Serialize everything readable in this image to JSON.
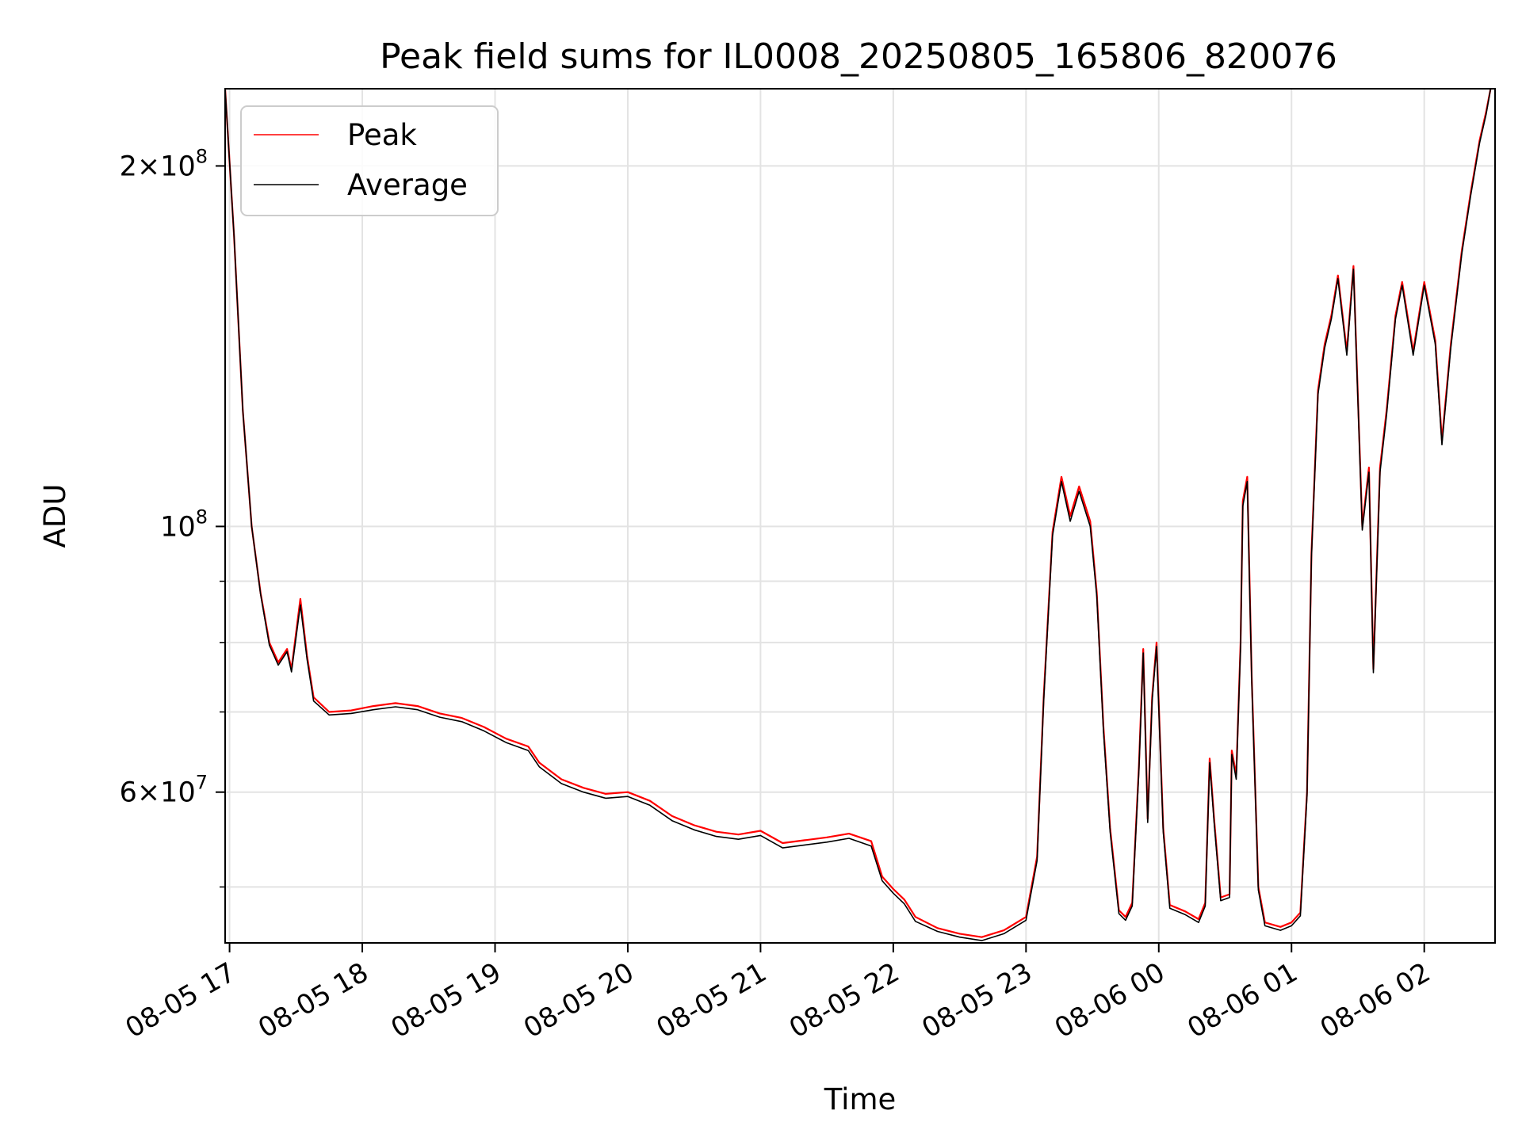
{
  "chart_data": {
    "type": "line",
    "title": "Peak field sums for IL0008_20250805_165806_820076",
    "xlabel": "Time",
    "ylabel": "ADU",
    "scale_y": "log",
    "grid": true,
    "legend_position": "top-left",
    "xlim": [
      "2025-08-05 16:58",
      "2025-08-06 02:32"
    ],
    "ylim": [
      44900000,
      232000000
    ],
    "x_ticks": [
      {
        "t": "2025-08-05 17:00",
        "label": "08-05 17"
      },
      {
        "t": "2025-08-05 18:00",
        "label": "08-05 18"
      },
      {
        "t": "2025-08-05 19:00",
        "label": "08-05 19"
      },
      {
        "t": "2025-08-05 20:00",
        "label": "08-05 20"
      },
      {
        "t": "2025-08-05 21:00",
        "label": "08-05 21"
      },
      {
        "t": "2025-08-05 22:00",
        "label": "08-05 22"
      },
      {
        "t": "2025-08-05 23:00",
        "label": "08-05 23"
      },
      {
        "t": "2025-08-06 00:00",
        "label": "08-06 00"
      },
      {
        "t": "2025-08-06 01:00",
        "label": "08-06 01"
      },
      {
        "t": "2025-08-06 02:00",
        "label": "08-06 02"
      }
    ],
    "y_major_ticks": [
      {
        "value": 60000000,
        "mant": "6",
        "exp": "7"
      },
      {
        "value": 100000000,
        "mant": "",
        "exp": "8"
      },
      {
        "value": 200000000,
        "mant": "2",
        "exp": "8"
      }
    ],
    "y_minor_ticks": [
      50000000,
      70000000,
      80000000,
      90000000
    ],
    "series": [
      {
        "name": "Peak",
        "color": "#ff0000",
        "points": [
          [
            "2025-08-05 16:58",
            232000000
          ],
          [
            "2025-08-05 17:02",
            175000000
          ],
          [
            "2025-08-05 17:06",
            125000000
          ],
          [
            "2025-08-05 17:10",
            100000000
          ],
          [
            "2025-08-05 17:14",
            88000000
          ],
          [
            "2025-08-05 17:18",
            80000000
          ],
          [
            "2025-08-05 17:22",
            77000000
          ],
          [
            "2025-08-05 17:26",
            79000000
          ],
          [
            "2025-08-05 17:28",
            76000000
          ],
          [
            "2025-08-05 17:32",
            87000000
          ],
          [
            "2025-08-05 17:35",
            78000000
          ],
          [
            "2025-08-05 17:38",
            72000000
          ],
          [
            "2025-08-05 17:45",
            70000000
          ],
          [
            "2025-08-05 17:55",
            70200000
          ],
          [
            "2025-08-05 18:05",
            70800000
          ],
          [
            "2025-08-05 18:15",
            71200000
          ],
          [
            "2025-08-05 18:25",
            70800000
          ],
          [
            "2025-08-05 18:35",
            69800000
          ],
          [
            "2025-08-05 18:45",
            69200000
          ],
          [
            "2025-08-05 18:55",
            68000000
          ],
          [
            "2025-08-05 19:05",
            66500000
          ],
          [
            "2025-08-05 19:15",
            65500000
          ],
          [
            "2025-08-05 19:20",
            63500000
          ],
          [
            "2025-08-05 19:30",
            61500000
          ],
          [
            "2025-08-05 19:40",
            60500000
          ],
          [
            "2025-08-05 19:50",
            59800000
          ],
          [
            "2025-08-05 20:00",
            60000000
          ],
          [
            "2025-08-05 20:10",
            59000000
          ],
          [
            "2025-08-05 20:20",
            57300000
          ],
          [
            "2025-08-05 20:30",
            56300000
          ],
          [
            "2025-08-05 20:40",
            55600000
          ],
          [
            "2025-08-05 20:50",
            55300000
          ],
          [
            "2025-08-05 21:00",
            55700000
          ],
          [
            "2025-08-05 21:10",
            54400000
          ],
          [
            "2025-08-05 21:20",
            54700000
          ],
          [
            "2025-08-05 21:30",
            55000000
          ],
          [
            "2025-08-05 21:40",
            55400000
          ],
          [
            "2025-08-05 21:50",
            54600000
          ],
          [
            "2025-08-05 21:55",
            51000000
          ],
          [
            "2025-08-05 22:00",
            49800000
          ],
          [
            "2025-08-05 22:05",
            48800000
          ],
          [
            "2025-08-05 22:10",
            47200000
          ],
          [
            "2025-08-05 22:20",
            46200000
          ],
          [
            "2025-08-05 22:30",
            45700000
          ],
          [
            "2025-08-05 22:40",
            45400000
          ],
          [
            "2025-08-05 22:50",
            46000000
          ],
          [
            "2025-08-05 23:00",
            47200000
          ],
          [
            "2025-08-05 23:05",
            53000000
          ],
          [
            "2025-08-05 23:08",
            72000000
          ],
          [
            "2025-08-05 23:12",
            99000000
          ],
          [
            "2025-08-05 23:16",
            110000000
          ],
          [
            "2025-08-05 23:20",
            102000000
          ],
          [
            "2025-08-05 23:24",
            108000000
          ],
          [
            "2025-08-05 23:29",
            101000000
          ],
          [
            "2025-08-05 23:32",
            88000000
          ],
          [
            "2025-08-05 23:35",
            68000000
          ],
          [
            "2025-08-05 23:38",
            56000000
          ],
          [
            "2025-08-05 23:42",
            47800000
          ],
          [
            "2025-08-05 23:45",
            47200000
          ],
          [
            "2025-08-05 23:48",
            48500000
          ],
          [
            "2025-08-05 23:51",
            63000000
          ],
          [
            "2025-08-05 23:53",
            79000000
          ],
          [
            "2025-08-05 23:55",
            57000000
          ],
          [
            "2025-08-05 23:57",
            72000000
          ],
          [
            "2025-08-05 23:59",
            80000000
          ],
          [
            "2025-08-06 00:02",
            56000000
          ],
          [
            "2025-08-06 00:05",
            48300000
          ],
          [
            "2025-08-06 00:12",
            47700000
          ],
          [
            "2025-08-06 00:18",
            47000000
          ],
          [
            "2025-08-06 00:21",
            48500000
          ],
          [
            "2025-08-06 00:23",
            64000000
          ],
          [
            "2025-08-06 00:25",
            57000000
          ],
          [
            "2025-08-06 00:28",
            49000000
          ],
          [
            "2025-08-06 00:32",
            49300000
          ],
          [
            "2025-08-06 00:33",
            65000000
          ],
          [
            "2025-08-06 00:35",
            62000000
          ],
          [
            "2025-08-06 00:37",
            80000000
          ],
          [
            "2025-08-06 00:38",
            105000000
          ],
          [
            "2025-08-06 00:40",
            110000000
          ],
          [
            "2025-08-06 00:42",
            75000000
          ],
          [
            "2025-08-06 00:45",
            50000000
          ],
          [
            "2025-08-06 00:48",
            46700000
          ],
          [
            "2025-08-06 00:55",
            46300000
          ],
          [
            "2025-08-06 01:00",
            46700000
          ],
          [
            "2025-08-06 01:04",
            47600000
          ],
          [
            "2025-08-06 01:07",
            60000000
          ],
          [
            "2025-08-06 01:09",
            95000000
          ],
          [
            "2025-08-06 01:12",
            130000000
          ],
          [
            "2025-08-06 01:15",
            142000000
          ],
          [
            "2025-08-06 01:18",
            150000000
          ],
          [
            "2025-08-06 01:21",
            162000000
          ],
          [
            "2025-08-06 01:25",
            140000000
          ],
          [
            "2025-08-06 01:28",
            165000000
          ],
          [
            "2025-08-06 01:32",
            100000000
          ],
          [
            "2025-08-06 01:35",
            112000000
          ],
          [
            "2025-08-06 01:37",
            76000000
          ],
          [
            "2025-08-06 01:40",
            112000000
          ],
          [
            "2025-08-06 01:43",
            125000000
          ],
          [
            "2025-08-06 01:47",
            150000000
          ],
          [
            "2025-08-06 01:50",
            160000000
          ],
          [
            "2025-08-06 01:55",
            140000000
          ],
          [
            "2025-08-06 02:00",
            160000000
          ],
          [
            "2025-08-06 02:05",
            143000000
          ],
          [
            "2025-08-06 02:08",
            118000000
          ],
          [
            "2025-08-06 02:12",
            142000000
          ],
          [
            "2025-08-06 02:17",
            170000000
          ],
          [
            "2025-08-06 02:21",
            190000000
          ],
          [
            "2025-08-06 02:25",
            210000000
          ],
          [
            "2025-08-06 02:28",
            222000000
          ],
          [
            "2025-08-06 02:30",
            232000000
          ]
        ]
      },
      {
        "name": "Average",
        "color": "#000000",
        "points": [
          [
            "2025-08-05 16:58",
            232000000
          ],
          [
            "2025-08-05 17:02",
            175000000
          ],
          [
            "2025-08-05 17:06",
            125000000
          ],
          [
            "2025-08-05 17:10",
            100000000
          ],
          [
            "2025-08-05 17:14",
            87800000
          ],
          [
            "2025-08-05 17:18",
            79600000
          ],
          [
            "2025-08-05 17:22",
            76600000
          ],
          [
            "2025-08-05 17:26",
            78600000
          ],
          [
            "2025-08-05 17:28",
            75600000
          ],
          [
            "2025-08-05 17:32",
            86000000
          ],
          [
            "2025-08-05 17:35",
            77500000
          ],
          [
            "2025-08-05 17:38",
            71500000
          ],
          [
            "2025-08-05 17:45",
            69600000
          ],
          [
            "2025-08-05 17:55",
            69800000
          ],
          [
            "2025-08-05 18:05",
            70300000
          ],
          [
            "2025-08-05 18:15",
            70700000
          ],
          [
            "2025-08-05 18:25",
            70300000
          ],
          [
            "2025-08-05 18:35",
            69300000
          ],
          [
            "2025-08-05 18:45",
            68700000
          ],
          [
            "2025-08-05 18:55",
            67500000
          ],
          [
            "2025-08-05 19:05",
            66000000
          ],
          [
            "2025-08-05 19:15",
            65000000
          ],
          [
            "2025-08-05 19:20",
            63000000
          ],
          [
            "2025-08-05 19:30",
            61000000
          ],
          [
            "2025-08-05 19:40",
            60000000
          ],
          [
            "2025-08-05 19:50",
            59300000
          ],
          [
            "2025-08-05 20:00",
            59500000
          ],
          [
            "2025-08-05 20:10",
            58500000
          ],
          [
            "2025-08-05 20:20",
            56800000
          ],
          [
            "2025-08-05 20:30",
            55800000
          ],
          [
            "2025-08-05 20:40",
            55100000
          ],
          [
            "2025-08-05 20:50",
            54800000
          ],
          [
            "2025-08-05 21:00",
            55200000
          ],
          [
            "2025-08-05 21:10",
            53900000
          ],
          [
            "2025-08-05 21:20",
            54200000
          ],
          [
            "2025-08-05 21:30",
            54500000
          ],
          [
            "2025-08-05 21:40",
            54900000
          ],
          [
            "2025-08-05 21:50",
            54100000
          ],
          [
            "2025-08-05 21:55",
            50600000
          ],
          [
            "2025-08-05 22:00",
            49400000
          ],
          [
            "2025-08-05 22:05",
            48400000
          ],
          [
            "2025-08-05 22:10",
            46800000
          ],
          [
            "2025-08-05 22:20",
            45900000
          ],
          [
            "2025-08-05 22:30",
            45400000
          ],
          [
            "2025-08-05 22:40",
            45100000
          ],
          [
            "2025-08-05 22:50",
            45700000
          ],
          [
            "2025-08-05 23:00",
            46900000
          ],
          [
            "2025-08-05 23:05",
            52600000
          ],
          [
            "2025-08-05 23:08",
            71500000
          ],
          [
            "2025-08-05 23:12",
            98300000
          ],
          [
            "2025-08-05 23:16",
            109000000
          ],
          [
            "2025-08-05 23:20",
            101000000
          ],
          [
            "2025-08-05 23:24",
            107000000
          ],
          [
            "2025-08-05 23:29",
            100000000
          ],
          [
            "2025-08-05 23:32",
            87400000
          ],
          [
            "2025-08-05 23:35",
            67500000
          ],
          [
            "2025-08-05 23:38",
            55600000
          ],
          [
            "2025-08-05 23:42",
            47500000
          ],
          [
            "2025-08-05 23:45",
            46900000
          ],
          [
            "2025-08-05 23:48",
            48200000
          ],
          [
            "2025-08-05 23:51",
            62500000
          ],
          [
            "2025-08-05 23:53",
            78400000
          ],
          [
            "2025-08-05 23:55",
            56600000
          ],
          [
            "2025-08-05 23:57",
            71500000
          ],
          [
            "2025-08-05 23:59",
            79400000
          ],
          [
            "2025-08-06 00:02",
            55600000
          ],
          [
            "2025-08-06 00:05",
            48000000
          ],
          [
            "2025-08-06 00:12",
            47400000
          ],
          [
            "2025-08-06 00:18",
            46700000
          ],
          [
            "2025-08-06 00:21",
            48200000
          ],
          [
            "2025-08-06 00:23",
            63500000
          ],
          [
            "2025-08-06 00:25",
            56600000
          ],
          [
            "2025-08-06 00:28",
            48700000
          ],
          [
            "2025-08-06 00:32",
            49000000
          ],
          [
            "2025-08-06 00:33",
            64500000
          ],
          [
            "2025-08-06 00:35",
            61500000
          ],
          [
            "2025-08-06 00:37",
            79400000
          ],
          [
            "2025-08-06 00:38",
            104000000
          ],
          [
            "2025-08-06 00:40",
            109000000
          ],
          [
            "2025-08-06 00:42",
            74500000
          ],
          [
            "2025-08-06 00:45",
            49700000
          ],
          [
            "2025-08-06 00:48",
            46400000
          ],
          [
            "2025-08-06 00:55",
            46000000
          ],
          [
            "2025-08-06 01:00",
            46400000
          ],
          [
            "2025-08-06 01:04",
            47300000
          ],
          [
            "2025-08-06 01:07",
            59600000
          ],
          [
            "2025-08-06 01:09",
            94300000
          ],
          [
            "2025-08-06 01:12",
            129000000
          ],
          [
            "2025-08-06 01:15",
            141000000
          ],
          [
            "2025-08-06 01:18",
            149000000
          ],
          [
            "2025-08-06 01:21",
            161000000
          ],
          [
            "2025-08-06 01:25",
            139000000
          ],
          [
            "2025-08-06 01:28",
            164000000
          ],
          [
            "2025-08-06 01:32",
            99300000
          ],
          [
            "2025-08-06 01:35",
            111000000
          ],
          [
            "2025-08-06 01:37",
            75500000
          ],
          [
            "2025-08-06 01:40",
            111000000
          ],
          [
            "2025-08-06 01:43",
            124000000
          ],
          [
            "2025-08-06 01:47",
            149000000
          ],
          [
            "2025-08-06 01:50",
            159000000
          ],
          [
            "2025-08-06 01:55",
            139000000
          ],
          [
            "2025-08-06 02:00",
            159000000
          ],
          [
            "2025-08-06 02:05",
            142000000
          ],
          [
            "2025-08-06 02:08",
            117000000
          ],
          [
            "2025-08-06 02:12",
            141000000
          ],
          [
            "2025-08-06 02:17",
            169000000
          ],
          [
            "2025-08-06 02:21",
            189000000
          ],
          [
            "2025-08-06 02:25",
            209000000
          ],
          [
            "2025-08-06 02:28",
            221000000
          ],
          [
            "2025-08-06 02:30",
            232000000
          ]
        ]
      }
    ]
  }
}
